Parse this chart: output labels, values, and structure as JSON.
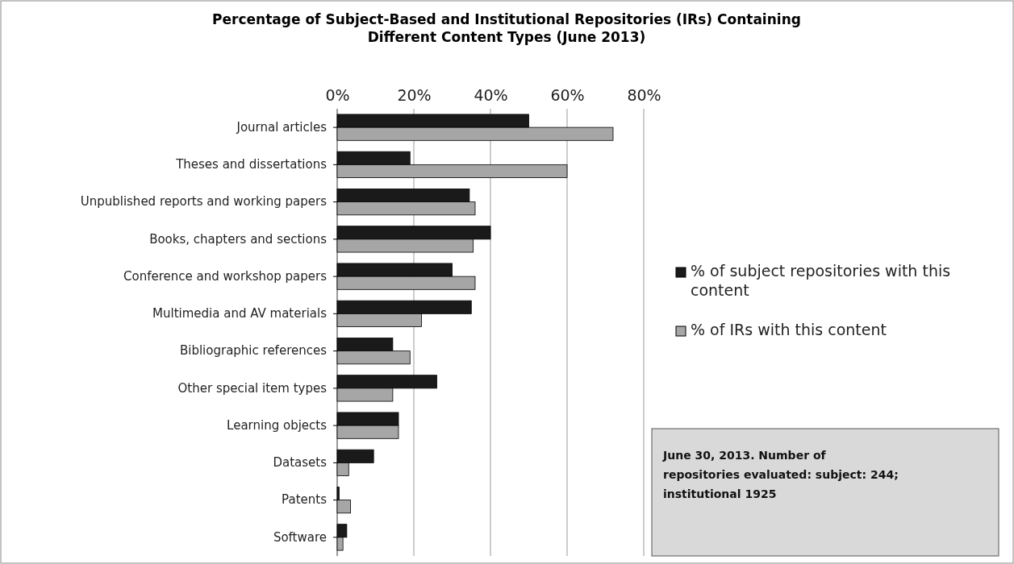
{
  "chart_data": {
    "type": "bar",
    "orientation": "horizontal",
    "title": "Percentage of Subject-Based and Institutional Repositories (IRs) Containing Different Content Types (June 2013)",
    "categories": [
      "Journal articles",
      "Theses and dissertations",
      "Unpublished reports and working papers",
      "Books, chapters and sections",
      "Conference and workshop papers",
      "Multimedia and AV materials",
      "Bibliographic references",
      "Other special item types",
      "Learning objects",
      "Datasets",
      "Patents",
      "Software"
    ],
    "series": [
      {
        "name": "% of subject repositories with this content",
        "color": "#1a1a1a",
        "values": [
          50,
          19,
          34.5,
          40,
          30,
          35,
          14.5,
          26,
          16,
          9.5,
          0.5,
          2.5
        ]
      },
      {
        "name": "% of IRs with this content",
        "color": "#a6a6a6",
        "values": [
          72,
          60,
          36,
          35.5,
          36,
          22,
          19,
          14.5,
          16,
          3,
          3.5,
          1.5
        ]
      }
    ],
    "xlim": [
      0,
      80
    ],
    "xticks": [
      {
        "value": 0,
        "label": "0%"
      },
      {
        "value": 20,
        "label": "20%"
      },
      {
        "value": 40,
        "label": "40%"
      },
      {
        "value": 60,
        "label": "60%"
      },
      {
        "value": 80,
        "label": "80%"
      }
    ],
    "grid": "x",
    "legend": "right",
    "annotations": [
      "June 30, 2013. Number of repositories evaluated: subject: 244; institutional 1925"
    ]
  }
}
